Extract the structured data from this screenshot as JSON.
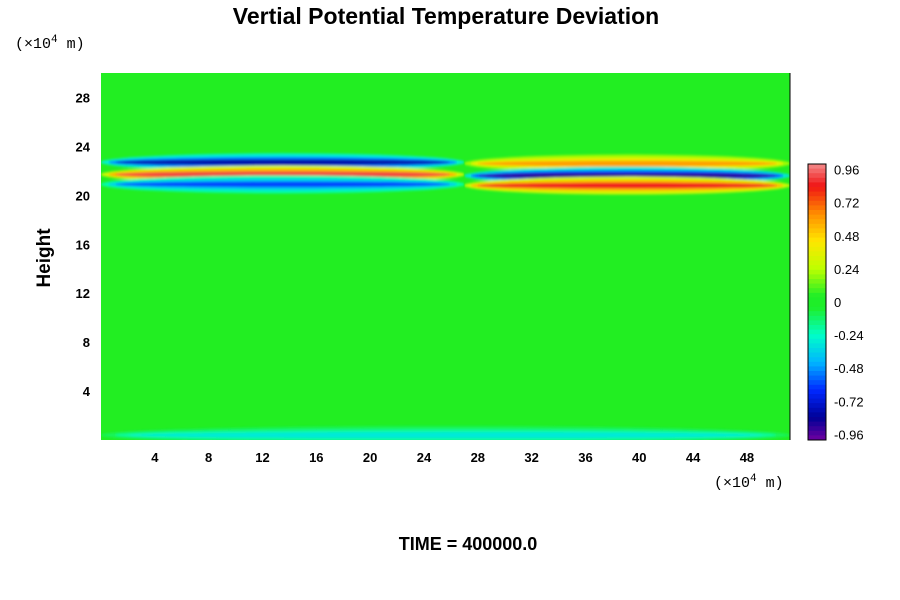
{
  "chart_data": {
    "type": "heatmap",
    "title": "Vertial Potential Temperature Deviation",
    "ylabel": "Height",
    "x_unit": {
      "prefix": "(×10",
      "exp": "4",
      "suffix": " m)"
    },
    "y_unit": {
      "prefix": "(×10",
      "exp": "4",
      "suffix": " m)"
    },
    "xlim": [
      0,
      51.2
    ],
    "ylim": [
      0,
      30
    ],
    "x_ticks": [
      "4",
      "8",
      "12",
      "16",
      "20",
      "24",
      "28",
      "32",
      "36",
      "40",
      "44",
      "48"
    ],
    "y_ticks": [
      "4",
      "8",
      "12",
      "16",
      "20",
      "24",
      "28"
    ],
    "colorbar": {
      "range": [
        -1.0,
        1.0
      ],
      "ticks": [
        "0.96",
        "0.72",
        "0.48",
        "0.24",
        "0",
        "-0.24",
        "-0.48",
        "-0.72",
        "-0.96"
      ]
    },
    "footer": "TIME = 400000.0",
    "background_value": 0,
    "features": [
      {
        "x": [
          0,
          27
        ],
        "y": 22.7,
        "value": -0.8,
        "description": "negative band upper-left"
      },
      {
        "x": [
          0,
          27
        ],
        "y": 21.7,
        "value": 0.9,
        "description": "positive band left"
      },
      {
        "x": [
          0,
          27
        ],
        "y": 20.9,
        "value": -0.6,
        "description": "negative band lower-left"
      },
      {
        "x": [
          27,
          51.2
        ],
        "y": 22.6,
        "value": 0.6,
        "description": "positive band upper-right"
      },
      {
        "x": [
          27,
          51.2
        ],
        "y": 21.6,
        "value": -0.9,
        "description": "negative band right"
      },
      {
        "x": [
          27,
          51.2
        ],
        "y": 20.8,
        "value": 0.85,
        "description": "positive band lower-right"
      },
      {
        "x": [
          0,
          51.2
        ],
        "y": 0.4,
        "value": -0.3,
        "description": "weak negative near ground"
      }
    ]
  }
}
